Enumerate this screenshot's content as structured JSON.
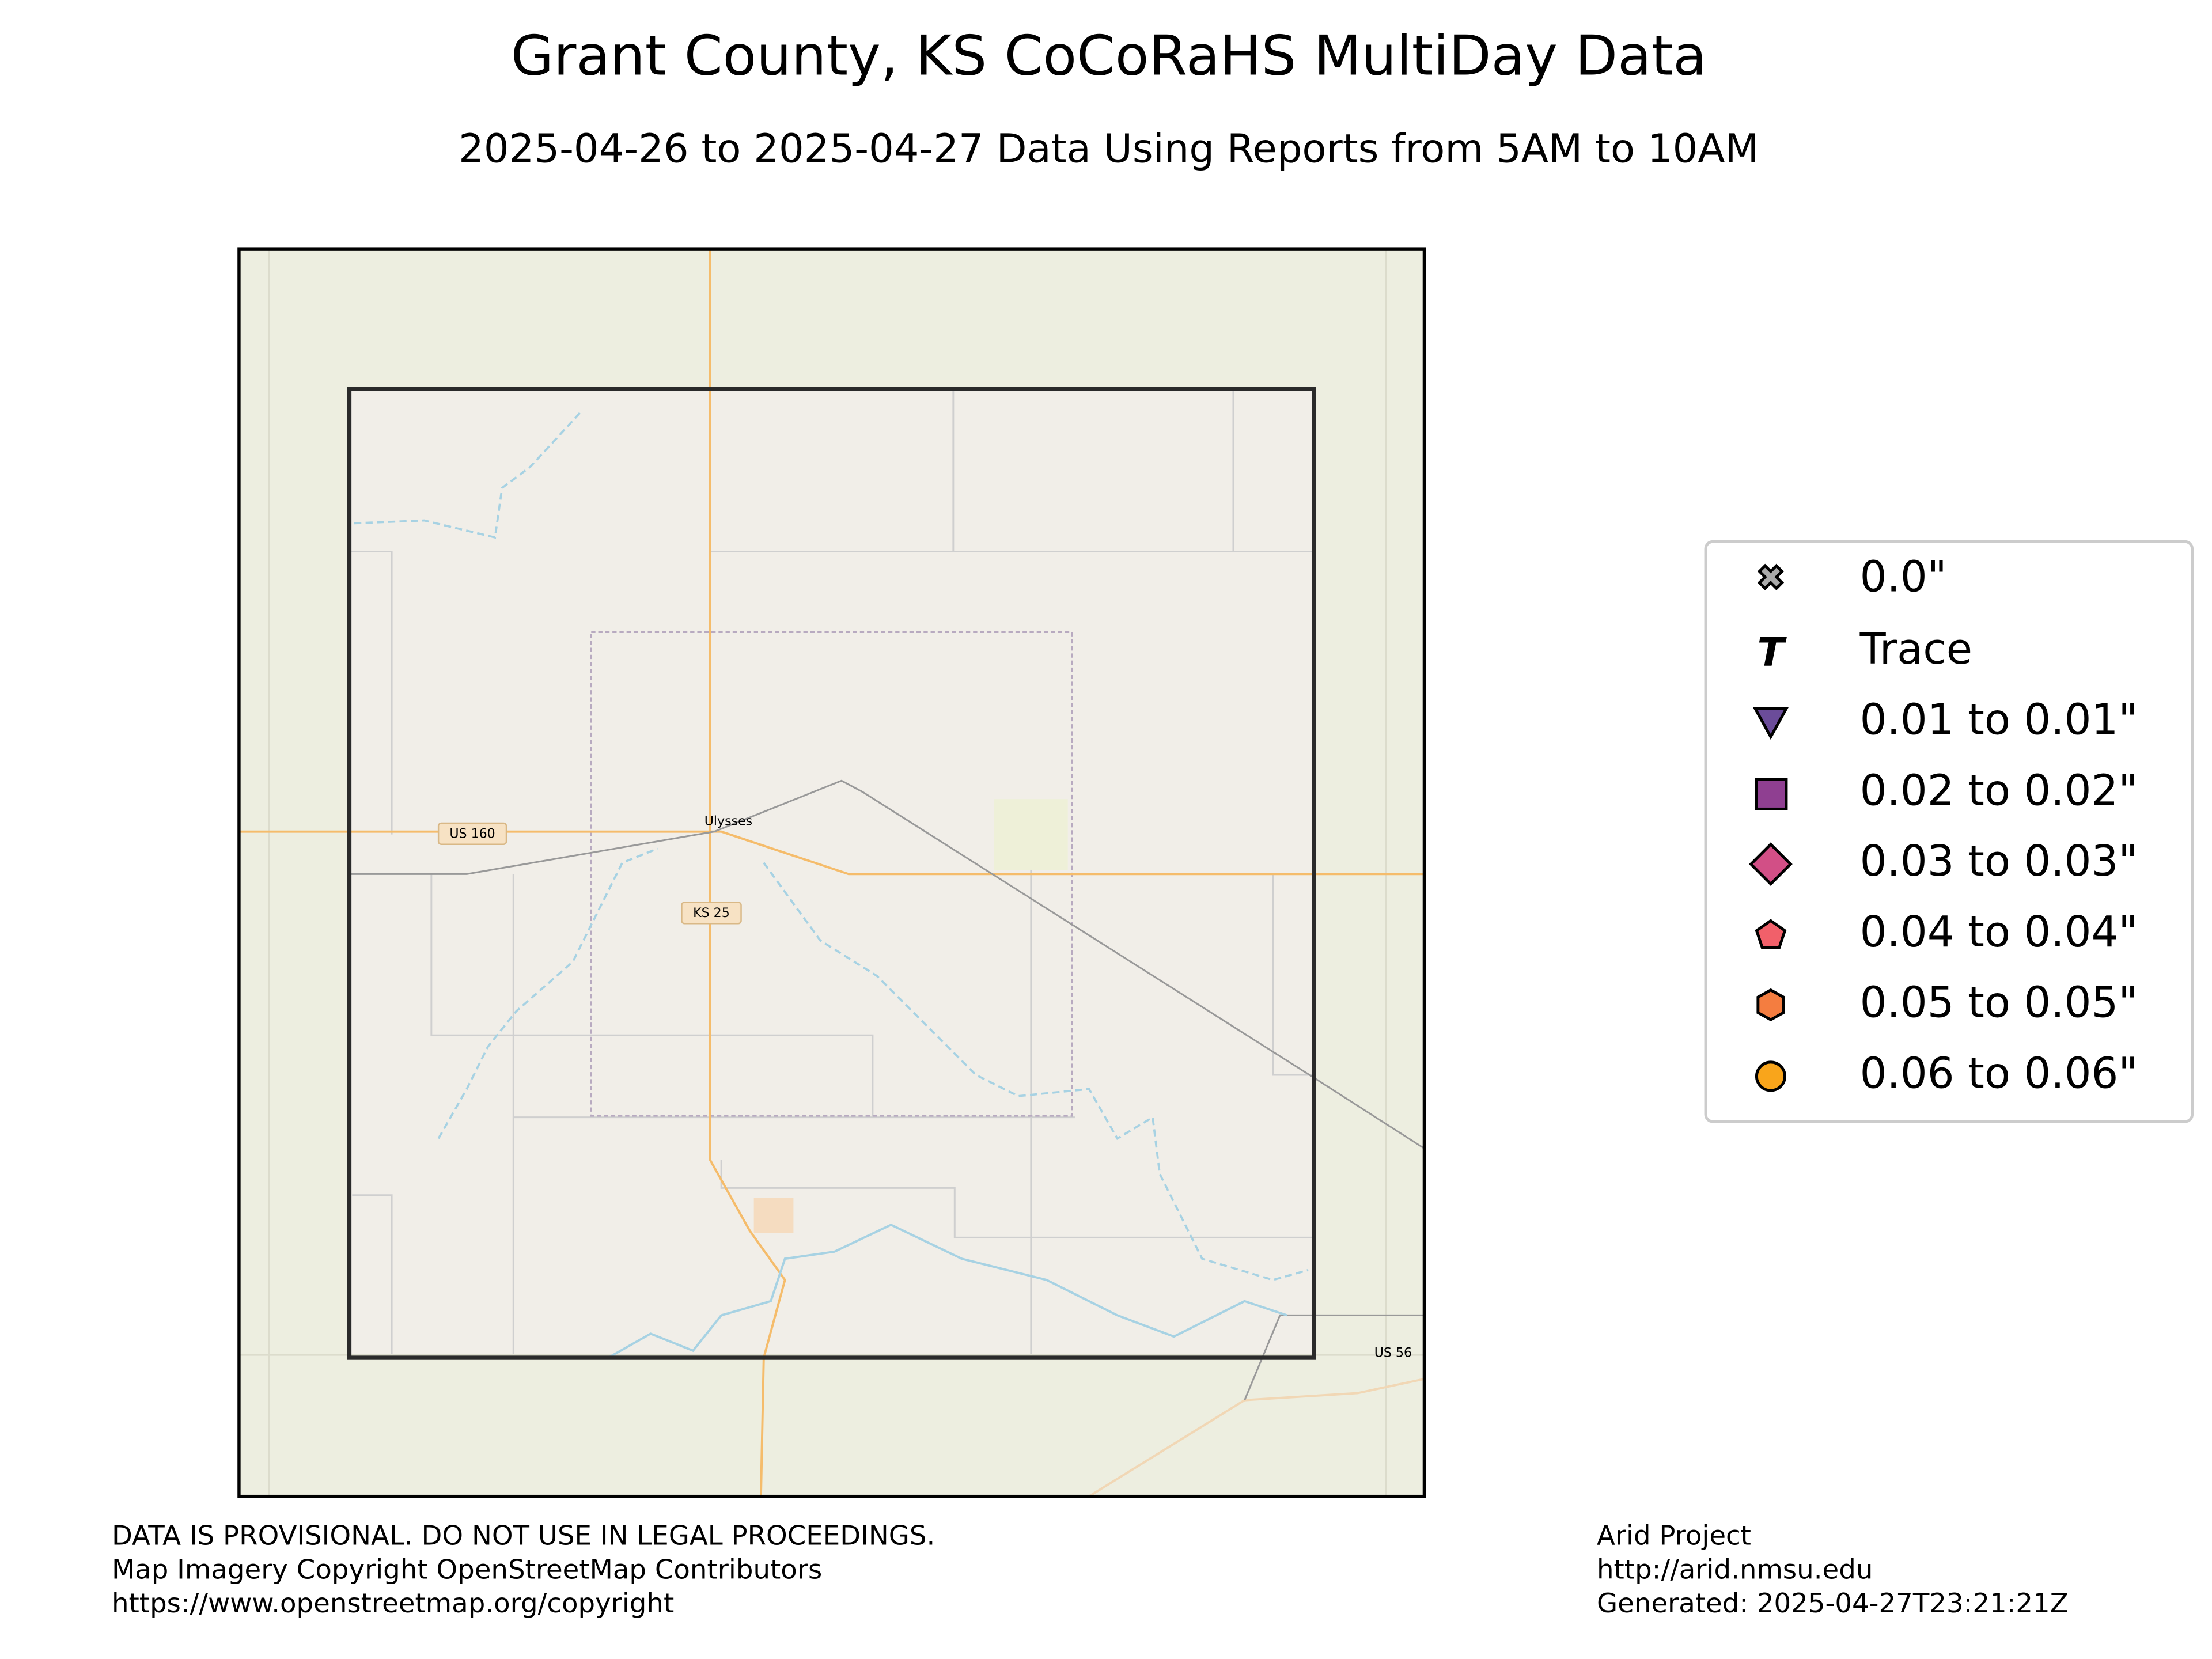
{
  "header": {
    "title": "Grant County, KS CoCoRaHS MultiDay Data",
    "subtitle": "2025-04-26 to 2025-04-27 Data Using Reports from 5AM to 10AM"
  },
  "map": {
    "labels": [
      "US 160",
      "Ulysses",
      "KS 25",
      "US 56"
    ]
  },
  "legend": {
    "items": [
      "0.0\"",
      "Trace",
      "0.01 to 0.01\"",
      "0.02 to 0.02\"",
      "0.03 to 0.03\"",
      "0.04 to 0.04\"",
      "0.05 to 0.05\"",
      "0.06 to 0.06\""
    ]
  },
  "footer": {
    "left": [
      "DATA IS PROVISIONAL. DO NOT USE IN LEGAL PROCEEDINGS.",
      "Map Imagery Copyright OpenStreetMap Contributors",
      "https://www.openstreetmap.org/copyright"
    ],
    "right": [
      "Arid Project",
      "http://arid.nmsu.edu",
      "Generated: 2025-04-27T23:21:21Z"
    ]
  }
}
